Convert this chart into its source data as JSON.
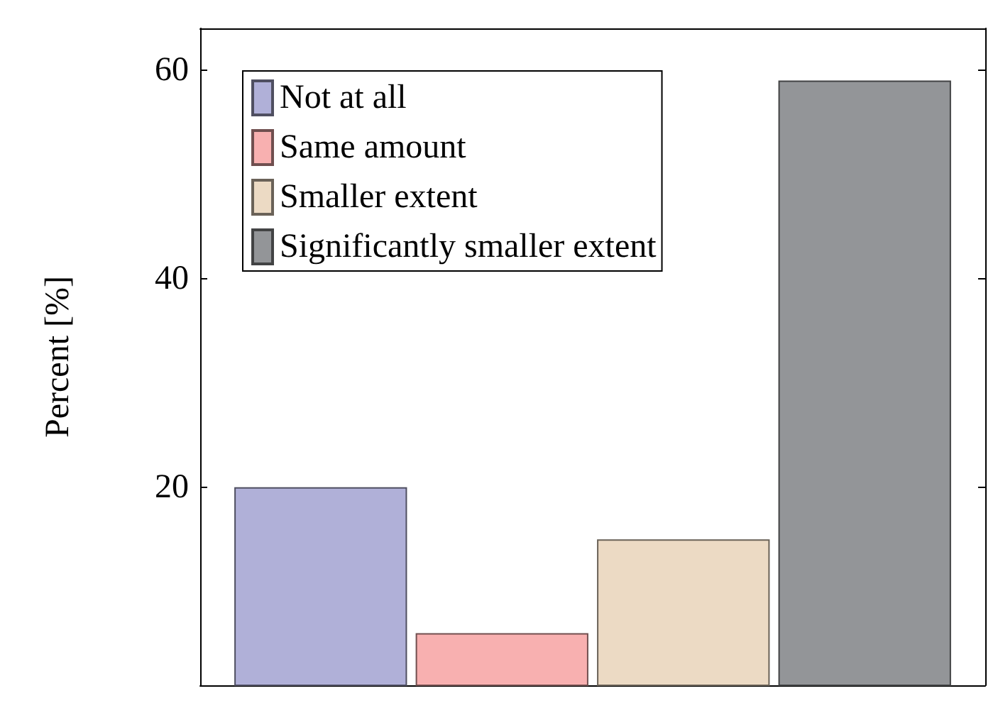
{
  "chart_data": {
    "type": "bar",
    "ylabel": "Percent [%]",
    "categories": [
      null
    ],
    "series": [
      {
        "name": "Not at all",
        "color": "#b0b0d8",
        "values": [
          20
        ]
      },
      {
        "name": "Same amount",
        "color": "#f8b0b0",
        "values": [
          6
        ]
      },
      {
        "name": "Smaller extent",
        "color": "#ecdac4",
        "values": [
          15
        ]
      },
      {
        "name": "Significantly smaller extent",
        "color": "#939598",
        "values": [
          59
        ]
      }
    ],
    "ylim": [
      1,
      64
    ],
    "yticks": [
      20,
      40,
      60
    ],
    "grid": false,
    "legend": "top left"
  }
}
